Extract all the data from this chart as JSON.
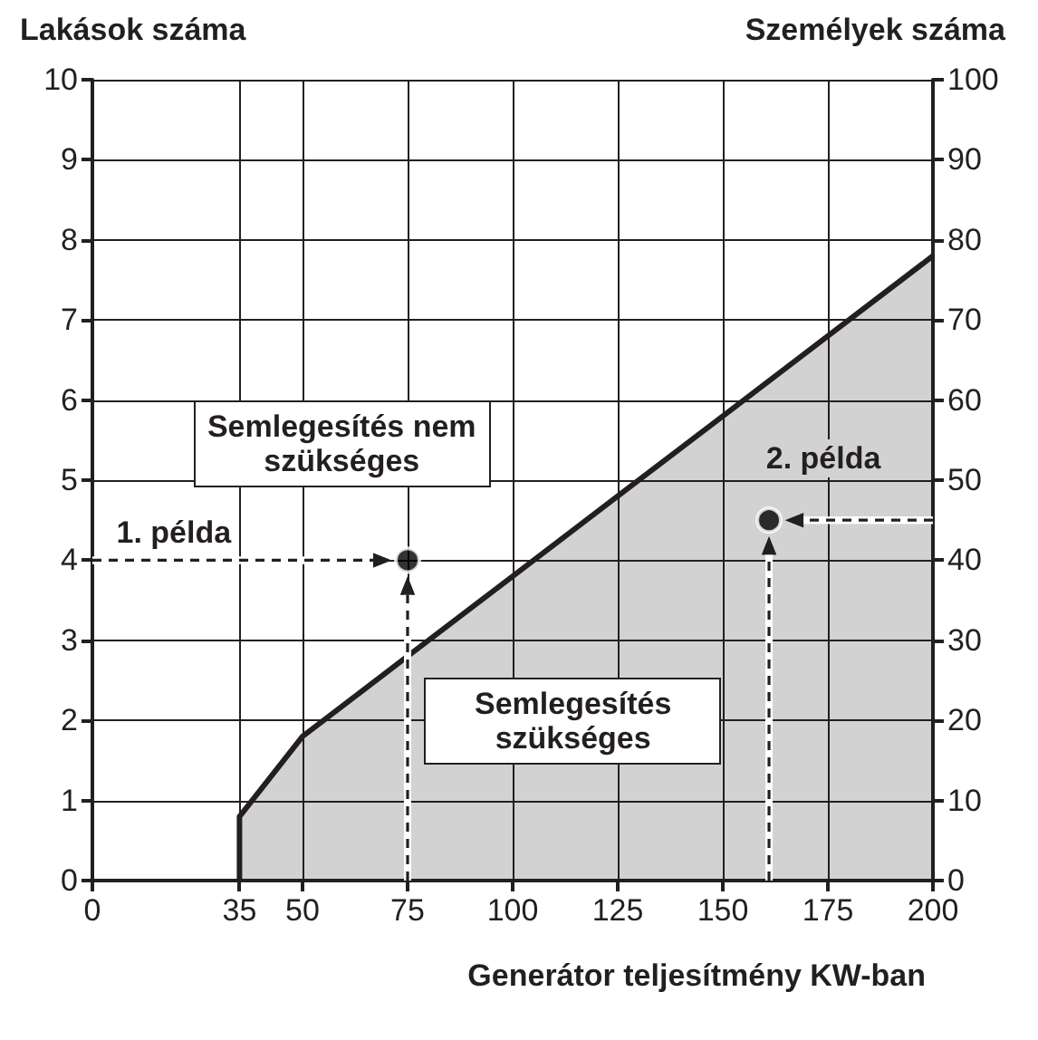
{
  "chart_data": {
    "type": "area",
    "xlabel": "Generátor teljesítmény KW-ban",
    "ylabel": "Lakások száma",
    "y2label": "Személyek száma",
    "xlim": [
      0,
      200
    ],
    "xticks": [
      0,
      35,
      50,
      75,
      100,
      125,
      150,
      175,
      200
    ],
    "ylim": [
      0,
      10
    ],
    "yticks": [
      0,
      1,
      2,
      3,
      4,
      5,
      6,
      7,
      8,
      9,
      10
    ],
    "y2lim": [
      0,
      100
    ],
    "y2ticks": [
      0,
      10,
      20,
      30,
      40,
      50,
      60,
      70,
      80,
      90,
      100
    ],
    "grid": true,
    "series": [
      {
        "color": "#231f20",
        "x": [
          35,
          35,
          50,
          75,
          100,
          125,
          150,
          175,
          200
        ],
        "values": [
          0,
          0.8,
          1.8,
          2.8,
          3.8,
          4.8,
          5.8,
          6.8,
          7.8
        ]
      },
      {
        "type": "scatter",
        "marker": "circle",
        "color": "#000000",
        "x": [
          75
        ],
        "values": [
          4
        ]
      },
      {
        "type": "scatter",
        "marker": "circle",
        "color": "#000000",
        "axis": "y2",
        "x": [
          161
        ],
        "values": [
          45
        ]
      }
    ],
    "annotations": [
      "1. példa",
      {
        "text": "2. példa",
        "x": 161,
        "y": 4.5
      },
      "Semlegesítés nem szükséges",
      "Semlegesítés szükséges"
    ]
  }
}
